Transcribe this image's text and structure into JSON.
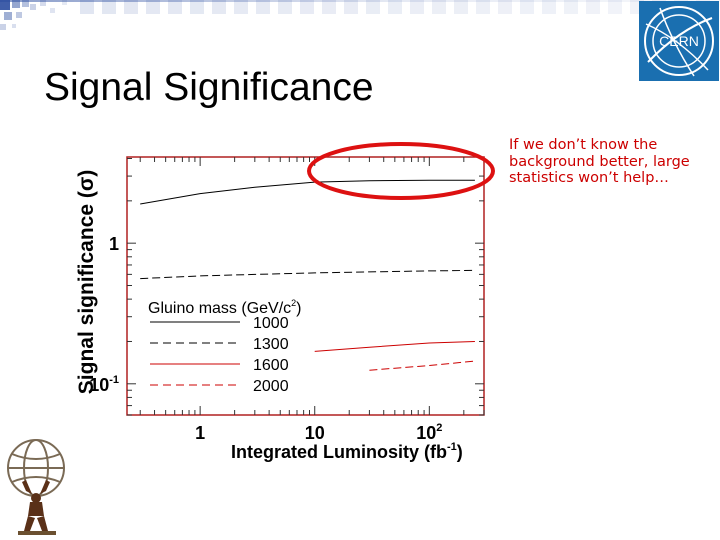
{
  "slide": {
    "title": "Signal Significance",
    "note": "If we don’t know the background better, large statistics won’t help…"
  },
  "logos": {
    "cern_text": "CERN",
    "cern_icon": "cern-logo-icon",
    "atlas_icon": "atlas-figure-icon"
  },
  "colors": {
    "accent_red": "#cc0000",
    "cern_blue": "#1a6fb0",
    "plot_frame": "#b02020",
    "band_blue": "#2b4da0"
  },
  "chart_data": {
    "type": "line",
    "xlabel": "Integrated Luminosity (fb",
    "xlabel_exp": "-1",
    "xlabel_close": ")",
    "ylabel": "Signal significance (σ)",
    "x_scale": "log",
    "y_scale": "log",
    "xlim": [
      0.23,
      300
    ],
    "ylim": [
      0.06,
      4.1
    ],
    "x_ticks": [
      {
        "value": 1,
        "base": "1",
        "exp": ""
      },
      {
        "value": 10,
        "base": "10",
        "exp": ""
      },
      {
        "value": 100,
        "base": "10",
        "exp": "2"
      }
    ],
    "y_ticks": [
      {
        "value": 1,
        "base": "1",
        "exp": ""
      },
      {
        "value": 0.1,
        "base": "10",
        "exp": "-1"
      }
    ],
    "legend": {
      "title": "Gluino mass (GeV/c",
      "title_exp": "2",
      "title_close": ")",
      "position": "bottom-left"
    },
    "series": [
      {
        "name": "1000",
        "color": "#000000",
        "dash": "solid",
        "x": [
          0.3,
          1,
          3,
          10,
          30,
          100,
          250
        ],
        "y": [
          1.9,
          2.25,
          2.5,
          2.72,
          2.78,
          2.8,
          2.8
        ]
      },
      {
        "name": "1300",
        "color": "#000000",
        "dash": "dashed",
        "x": [
          0.3,
          1,
          3,
          10,
          30,
          100,
          250
        ],
        "y": [
          0.56,
          0.585,
          0.6,
          0.615,
          0.625,
          0.635,
          0.64
        ]
      },
      {
        "name": "1600",
        "color": "#cc0000",
        "dash": "solid",
        "x": [
          10,
          30,
          100,
          250
        ],
        "y": [
          0.17,
          0.182,
          0.195,
          0.2
        ]
      },
      {
        "name": "2000",
        "color": "#cc0000",
        "dash": "dashed",
        "x": [
          30,
          100,
          250
        ],
        "y": [
          0.125,
          0.135,
          0.145
        ]
      }
    ],
    "highlight": {
      "shape": "ellipse",
      "color": "#cc0000",
      "around": "series 1000 at high luminosity"
    }
  }
}
